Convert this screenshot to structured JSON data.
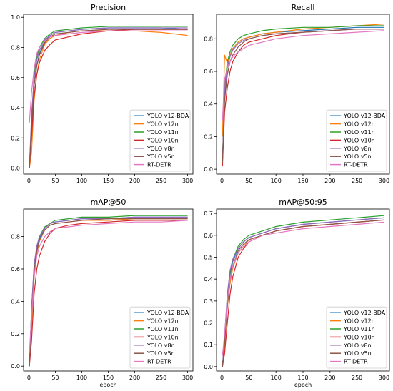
{
  "colors": {
    "YOLO v12-BDA": "#1f77b4",
    "YOLO v12n": "#ff7f0e",
    "YOLO v11n": "#2ca02c",
    "YOLO v10n": "#d62728",
    "YOLO v8n": "#9467bd",
    "YOLO v5n": "#8c564b",
    "RT-DETR": "#e377c2"
  },
  "chart_data": [
    {
      "type": "line",
      "title": "Precision",
      "xlabel": "",
      "ylabel": "",
      "xlim": [
        -10,
        310
      ],
      "ylim": [
        -0.04,
        1.02
      ],
      "xticks": [
        0,
        50,
        100,
        150,
        200,
        250,
        300
      ],
      "yticks": [
        0.0,
        0.2,
        0.4,
        0.6,
        0.8,
        1.0
      ],
      "ytick_labels": [
        "0.0",
        "0.2",
        "0.4",
        "0.6",
        "0.8",
        "1.0"
      ],
      "legend_position": "lower-right",
      "x": [
        1,
        5,
        10,
        15,
        20,
        30,
        40,
        50,
        75,
        100,
        150,
        200,
        250,
        300
      ],
      "series": [
        {
          "name": "YOLO v12-BDA",
          "values": [
            0.0,
            0.25,
            0.55,
            0.68,
            0.76,
            0.84,
            0.88,
            0.9,
            0.91,
            0.92,
            0.93,
            0.93,
            0.93,
            0.92
          ]
        },
        {
          "name": "YOLO v12n",
          "values": [
            0.0,
            0.1,
            0.45,
            0.62,
            0.72,
            0.82,
            0.86,
            0.88,
            0.9,
            0.91,
            0.91,
            0.91,
            0.9,
            0.88
          ]
        },
        {
          "name": "YOLO v11n",
          "values": [
            0.0,
            0.3,
            0.62,
            0.74,
            0.8,
            0.86,
            0.89,
            0.91,
            0.92,
            0.93,
            0.94,
            0.94,
            0.94,
            0.94
          ]
        },
        {
          "name": "YOLO v10n",
          "values": [
            0.0,
            0.2,
            0.48,
            0.62,
            0.7,
            0.78,
            0.82,
            0.85,
            0.87,
            0.89,
            0.91,
            0.92,
            0.92,
            0.92
          ]
        },
        {
          "name": "YOLO v8n",
          "values": [
            0.0,
            0.35,
            0.6,
            0.72,
            0.78,
            0.85,
            0.88,
            0.9,
            0.91,
            0.92,
            0.93,
            0.93,
            0.93,
            0.93
          ]
        },
        {
          "name": "YOLO v5n",
          "values": [
            0.0,
            0.28,
            0.55,
            0.68,
            0.75,
            0.83,
            0.87,
            0.89,
            0.9,
            0.91,
            0.92,
            0.92,
            0.92,
            0.92
          ]
        },
        {
          "name": "RT-DETR",
          "values": [
            0.3,
            0.5,
            0.66,
            0.76,
            0.8,
            0.84,
            0.87,
            0.88,
            0.89,
            0.9,
            0.91,
            0.91,
            0.91,
            0.91
          ]
        }
      ]
    },
    {
      "type": "line",
      "title": "Recall",
      "xlabel": "",
      "ylabel": "",
      "xlim": [
        -10,
        310
      ],
      "ylim": [
        -0.03,
        0.95
      ],
      "xticks": [
        0,
        50,
        100,
        150,
        200,
        250,
        300
      ],
      "yticks": [
        0.0,
        0.2,
        0.4,
        0.6,
        0.8
      ],
      "ytick_labels": [
        "0.0",
        "0.2",
        "0.4",
        "0.6",
        "0.8"
      ],
      "legend_position": "lower-right",
      "x": [
        1,
        5,
        10,
        15,
        20,
        30,
        40,
        50,
        75,
        100,
        150,
        200,
        250,
        300
      ],
      "series": [
        {
          "name": "YOLO v12-BDA",
          "values": [
            0.05,
            0.45,
            0.62,
            0.7,
            0.74,
            0.78,
            0.8,
            0.81,
            0.83,
            0.84,
            0.85,
            0.86,
            0.87,
            0.87
          ]
        },
        {
          "name": "YOLO v12n",
          "values": [
            0.2,
            0.7,
            0.65,
            0.7,
            0.74,
            0.78,
            0.8,
            0.81,
            0.83,
            0.84,
            0.86,
            0.87,
            0.88,
            0.89
          ]
        },
        {
          "name": "YOLO v11n",
          "values": [
            0.05,
            0.5,
            0.66,
            0.72,
            0.76,
            0.8,
            0.82,
            0.83,
            0.85,
            0.86,
            0.87,
            0.87,
            0.88,
            0.88
          ]
        },
        {
          "name": "YOLO v10n",
          "values": [
            0.02,
            0.35,
            0.5,
            0.6,
            0.66,
            0.72,
            0.76,
            0.78,
            0.8,
            0.82,
            0.84,
            0.85,
            0.86,
            0.86
          ]
        },
        {
          "name": "YOLO v8n",
          "values": [
            0.05,
            0.48,
            0.62,
            0.69,
            0.73,
            0.77,
            0.79,
            0.8,
            0.82,
            0.83,
            0.84,
            0.85,
            0.86,
            0.86
          ]
        },
        {
          "name": "YOLO v5n",
          "values": [
            0.04,
            0.42,
            0.58,
            0.66,
            0.7,
            0.75,
            0.78,
            0.8,
            0.82,
            0.83,
            0.84,
            0.85,
            0.86,
            0.86
          ]
        },
        {
          "name": "RT-DETR",
          "values": [
            0.3,
            0.55,
            0.62,
            0.66,
            0.69,
            0.72,
            0.74,
            0.76,
            0.78,
            0.8,
            0.82,
            0.83,
            0.84,
            0.85
          ]
        }
      ]
    },
    {
      "type": "line",
      "title": "mAP@50",
      "xlabel": "epoch",
      "ylabel": "",
      "xlim": [
        -10,
        310
      ],
      "ylim": [
        -0.03,
        0.97
      ],
      "xticks": [
        0,
        50,
        100,
        150,
        200,
        250,
        300
      ],
      "yticks": [
        0.0,
        0.2,
        0.4,
        0.6,
        0.8
      ],
      "ytick_labels": [
        "0.0",
        "0.2",
        "0.4",
        "0.6",
        "0.8"
      ],
      "legend_position": "lower-right",
      "x": [
        1,
        5,
        10,
        15,
        20,
        30,
        40,
        50,
        75,
        100,
        150,
        200,
        250,
        300
      ],
      "series": [
        {
          "name": "YOLO v12-BDA",
          "values": [
            0.0,
            0.3,
            0.6,
            0.72,
            0.79,
            0.85,
            0.88,
            0.89,
            0.9,
            0.91,
            0.91,
            0.92,
            0.92,
            0.92
          ]
        },
        {
          "name": "YOLO v12n",
          "values": [
            0.0,
            0.25,
            0.55,
            0.7,
            0.77,
            0.84,
            0.87,
            0.88,
            0.89,
            0.9,
            0.9,
            0.91,
            0.91,
            0.91
          ]
        },
        {
          "name": "YOLO v11n",
          "values": [
            0.0,
            0.35,
            0.62,
            0.74,
            0.8,
            0.86,
            0.88,
            0.9,
            0.91,
            0.92,
            0.92,
            0.93,
            0.93,
            0.93
          ]
        },
        {
          "name": "YOLO v10n",
          "values": [
            0.0,
            0.15,
            0.45,
            0.6,
            0.68,
            0.77,
            0.82,
            0.85,
            0.87,
            0.88,
            0.89,
            0.9,
            0.9,
            0.9
          ]
        },
        {
          "name": "YOLO v8n",
          "values": [
            0.0,
            0.35,
            0.63,
            0.74,
            0.8,
            0.85,
            0.88,
            0.89,
            0.9,
            0.91,
            0.91,
            0.92,
            0.92,
            0.92
          ]
        },
        {
          "name": "YOLO v5n",
          "values": [
            0.0,
            0.3,
            0.58,
            0.71,
            0.78,
            0.84,
            0.87,
            0.88,
            0.89,
            0.9,
            0.91,
            0.91,
            0.91,
            0.91
          ]
        },
        {
          "name": "RT-DETR",
          "values": [
            0.08,
            0.3,
            0.55,
            0.68,
            0.74,
            0.8,
            0.83,
            0.85,
            0.86,
            0.87,
            0.88,
            0.89,
            0.89,
            0.9
          ]
        }
      ]
    },
    {
      "type": "line",
      "title": "mAP@50:95",
      "xlabel": "epoch",
      "ylabel": "",
      "xlim": [
        -10,
        310
      ],
      "ylim": [
        -0.02,
        0.72
      ],
      "xticks": [
        0,
        50,
        100,
        150,
        200,
        250,
        300
      ],
      "yticks": [
        0.0,
        0.1,
        0.2,
        0.3,
        0.4,
        0.5,
        0.6,
        0.7
      ],
      "ytick_labels": [
        "0.0",
        "0.1",
        "0.2",
        "0.3",
        "0.4",
        "0.5",
        "0.6",
        "0.7"
      ],
      "legend_position": "lower-right",
      "x": [
        1,
        5,
        10,
        15,
        20,
        30,
        40,
        50,
        75,
        100,
        150,
        200,
        250,
        300
      ],
      "series": [
        {
          "name": "YOLO v12-BDA",
          "values": [
            0.0,
            0.12,
            0.3,
            0.42,
            0.48,
            0.54,
            0.57,
            0.59,
            0.61,
            0.63,
            0.65,
            0.66,
            0.67,
            0.68
          ]
        },
        {
          "name": "YOLO v12n",
          "values": [
            0.0,
            0.1,
            0.27,
            0.38,
            0.45,
            0.52,
            0.55,
            0.58,
            0.6,
            0.62,
            0.64,
            0.65,
            0.66,
            0.67
          ]
        },
        {
          "name": "YOLO v11n",
          "values": [
            0.0,
            0.13,
            0.32,
            0.43,
            0.49,
            0.55,
            0.58,
            0.6,
            0.62,
            0.64,
            0.66,
            0.67,
            0.68,
            0.69
          ]
        },
        {
          "name": "YOLO v10n",
          "values": [
            0.0,
            0.06,
            0.2,
            0.33,
            0.41,
            0.5,
            0.54,
            0.57,
            0.6,
            0.62,
            0.64,
            0.65,
            0.66,
            0.67
          ]
        },
        {
          "name": "YOLO v8n",
          "values": [
            0.0,
            0.14,
            0.33,
            0.44,
            0.49,
            0.54,
            0.57,
            0.59,
            0.61,
            0.63,
            0.65,
            0.66,
            0.67,
            0.68
          ]
        },
        {
          "name": "YOLO v5n",
          "values": [
            0.0,
            0.11,
            0.28,
            0.4,
            0.46,
            0.53,
            0.56,
            0.58,
            0.6,
            0.62,
            0.64,
            0.65,
            0.66,
            0.67
          ]
        },
        {
          "name": "RT-DETR",
          "values": [
            0.05,
            0.15,
            0.3,
            0.4,
            0.46,
            0.52,
            0.55,
            0.57,
            0.6,
            0.61,
            0.63,
            0.64,
            0.65,
            0.66
          ]
        }
      ]
    }
  ]
}
